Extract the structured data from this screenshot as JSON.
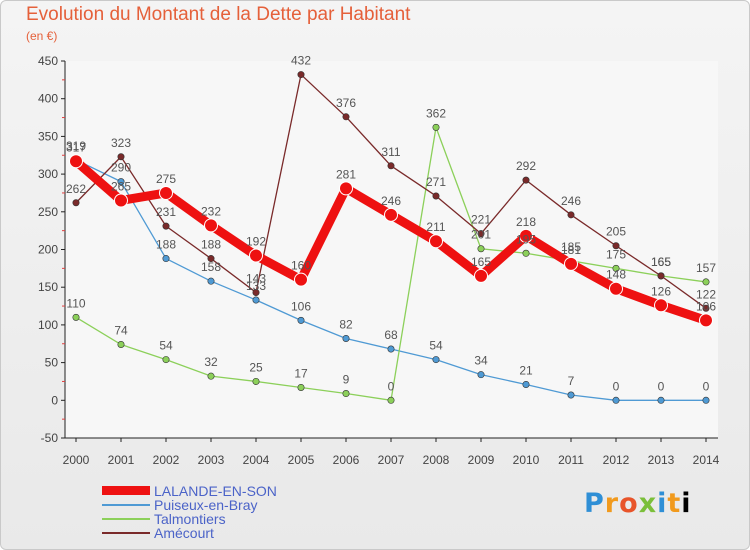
{
  "title": "Evolution du Montant de la Dette par Habitant",
  "unit": "(en €)",
  "logo_text": "Proxiti",
  "chart_data": {
    "type": "line",
    "title": "Evolution du Montant de la Dette par Habitant",
    "subtitle": "(en €)",
    "xlabel": "",
    "ylabel": "",
    "x": [
      2000,
      2001,
      2002,
      2003,
      2004,
      2005,
      2006,
      2007,
      2008,
      2009,
      2010,
      2011,
      2012,
      2013,
      2014
    ],
    "ylim": [
      -50,
      450
    ],
    "yticks": [
      -50,
      0,
      50,
      100,
      150,
      200,
      250,
      300,
      350,
      400,
      450
    ],
    "grid": false,
    "legend_position": "bottom-left",
    "series": [
      {
        "name": "LALANDE-EN-SON",
        "color": "#ee1111",
        "values": [
          317,
          265,
          275,
          232,
          192,
          160,
          281,
          246,
          211,
          165,
          218,
          181,
          148,
          126,
          106
        ],
        "labels": [
          "317",
          "265",
          "275",
          "232",
          "192",
          "160",
          "281",
          "246",
          "211",
          "165",
          "218",
          "181",
          "148",
          "126",
          "106"
        ]
      },
      {
        "name": "Puiseux-en-Bray",
        "color": "#4f9ad4",
        "values": [
          319,
          290,
          188,
          158,
          133,
          106,
          82,
          68,
          54,
          34,
          21,
          7,
          0,
          0,
          0
        ],
        "labels": [
          "319",
          "290",
          "188",
          "158",
          "133",
          "106",
          "82",
          "68",
          "54",
          "34",
          "21",
          "7",
          "0",
          "0",
          "0"
        ]
      },
      {
        "name": "Talmontiers",
        "color": "#8cd05a",
        "values": [
          110,
          74,
          54,
          32,
          25,
          17,
          9,
          0,
          362,
          201,
          195,
          185,
          175,
          165,
          157
        ],
        "labels": [
          "110",
          "74",
          "54",
          "32",
          "25",
          "17",
          "9",
          "0",
          "362",
          "201",
          "195",
          "185",
          "175",
          "165",
          "157"
        ]
      },
      {
        "name": "Amécourt",
        "color": "#7a2a2a",
        "values": [
          262,
          323,
          231,
          188,
          143,
          432,
          376,
          311,
          271,
          221,
          292,
          246,
          205,
          165,
          122
        ],
        "labels": [
          "262",
          "323",
          "231",
          "188",
          "143",
          "432",
          "376",
          "311",
          "271",
          "221",
          "292",
          "246",
          "205",
          "165",
          "122"
        ]
      }
    ]
  }
}
